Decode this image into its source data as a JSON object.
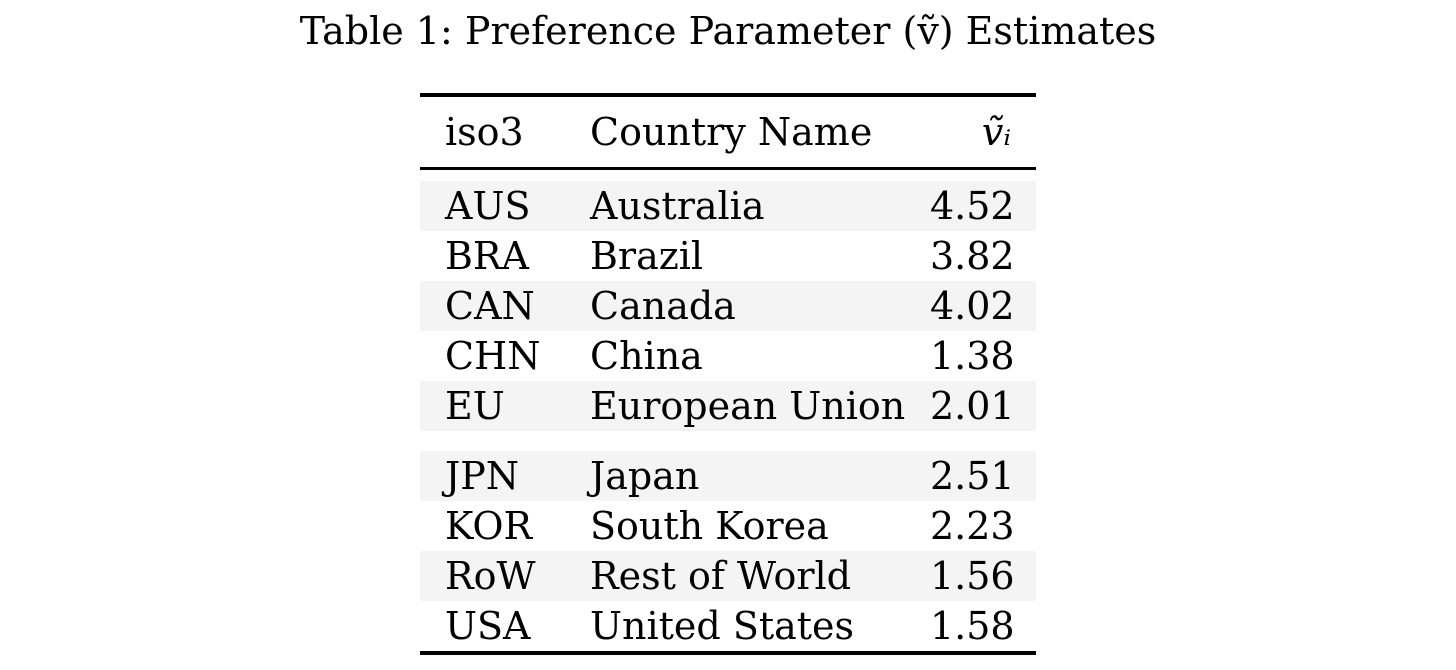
{
  "caption": {
    "label": "Table 1:",
    "text": "Preference Parameter (ṽ) Estimates"
  },
  "table": {
    "headers": {
      "iso3": "iso3",
      "country": "Country Name",
      "value": "ṽᵢ"
    },
    "groups": [
      [
        {
          "iso3": "AUS",
          "country": "Australia",
          "value": "4.52"
        },
        {
          "iso3": "BRA",
          "country": "Brazil",
          "value": "3.82"
        },
        {
          "iso3": "CAN",
          "country": "Canada",
          "value": "4.02"
        },
        {
          "iso3": "CHN",
          "country": "China",
          "value": "1.38"
        },
        {
          "iso3": "EU",
          "country": "European Union",
          "value": "2.01"
        }
      ],
      [
        {
          "iso3": "JPN",
          "country": "Japan",
          "value": "2.51"
        },
        {
          "iso3": "KOR",
          "country": "South Korea",
          "value": "2.23"
        },
        {
          "iso3": "RoW",
          "country": "Rest of World",
          "value": "1.56"
        },
        {
          "iso3": "USA",
          "country": "United States",
          "value": "1.58"
        }
      ]
    ]
  }
}
